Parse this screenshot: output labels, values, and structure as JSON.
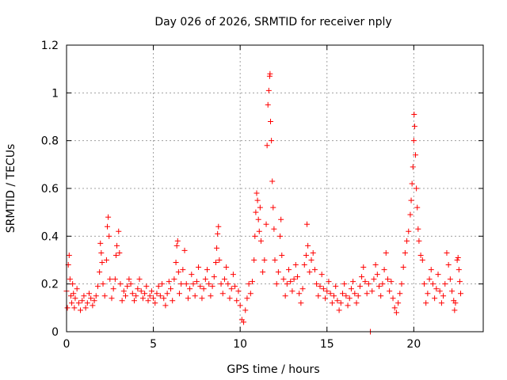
{
  "chart_data": {
    "type": "scatter",
    "title": "Day 026 of 2026, SRMTID for receiver nply",
    "xlabel": "GPS time / hours",
    "ylabel": "SRMTID / TECUs",
    "xlim": [
      0,
      24
    ],
    "ylim": [
      0,
      1.2
    ],
    "grid": true,
    "legend": "none",
    "marker": "plus",
    "series_color": "#ff0000",
    "xticks": [
      {
        "value": 0,
        "label": "0"
      },
      {
        "value": 5,
        "label": "5"
      },
      {
        "value": 10,
        "label": "10"
      },
      {
        "value": 15,
        "label": "15"
      },
      {
        "value": 20,
        "label": "20"
      }
    ],
    "yticks": [
      {
        "value": 0,
        "label": "0"
      },
      {
        "value": 0.2,
        "label": "0.2"
      },
      {
        "value": 0.4,
        "label": "0.4"
      },
      {
        "value": 0.6,
        "label": "0.6"
      },
      {
        "value": 0.8,
        "label": "0.8"
      },
      {
        "value": 1.0,
        "label": "1"
      },
      {
        "value": 1.2,
        "label": "1.2"
      }
    ],
    "series": [
      {
        "name": "SRMTID",
        "points": [
          [
            0.0,
            0.17
          ],
          [
            0.05,
            0.1
          ],
          [
            0.1,
            0.28
          ],
          [
            0.15,
            0.32
          ],
          [
            0.2,
            0.22
          ],
          [
            0.25,
            0.15
          ],
          [
            0.3,
            0.12
          ],
          [
            0.35,
            0.2
          ],
          [
            0.4,
            0.16
          ],
          [
            0.45,
            0.1
          ],
          [
            0.5,
            0.14
          ],
          [
            0.6,
            0.18
          ],
          [
            0.7,
            0.12
          ],
          [
            0.8,
            0.09
          ],
          [
            0.9,
            0.13
          ],
          [
            1.0,
            0.15
          ],
          [
            1.1,
            0.1
          ],
          [
            1.2,
            0.12
          ],
          [
            1.3,
            0.16
          ],
          [
            1.4,
            0.14
          ],
          [
            1.5,
            0.11
          ],
          [
            1.6,
            0.13
          ],
          [
            1.7,
            0.15
          ],
          [
            1.8,
            0.19
          ],
          [
            1.9,
            0.25
          ],
          [
            1.95,
            0.37
          ],
          [
            2.0,
            0.33
          ],
          [
            2.05,
            0.29
          ],
          [
            2.1,
            0.2
          ],
          [
            2.2,
            0.15
          ],
          [
            2.3,
            0.3
          ],
          [
            2.35,
            0.44
          ],
          [
            2.4,
            0.48
          ],
          [
            2.45,
            0.4
          ],
          [
            2.5,
            0.22
          ],
          [
            2.6,
            0.14
          ],
          [
            2.7,
            0.18
          ],
          [
            2.8,
            0.22
          ],
          [
            2.85,
            0.32
          ],
          [
            2.9,
            0.36
          ],
          [
            3.0,
            0.42
          ],
          [
            3.05,
            0.33
          ],
          [
            3.1,
            0.2
          ],
          [
            3.2,
            0.13
          ],
          [
            3.3,
            0.17
          ],
          [
            3.4,
            0.15
          ],
          [
            3.5,
            0.19
          ],
          [
            3.6,
            0.22
          ],
          [
            3.7,
            0.2
          ],
          [
            3.8,
            0.16
          ],
          [
            3.9,
            0.13
          ],
          [
            4.0,
            0.15
          ],
          [
            4.1,
            0.18
          ],
          [
            4.2,
            0.22
          ],
          [
            4.3,
            0.17
          ],
          [
            4.4,
            0.14
          ],
          [
            4.5,
            0.16
          ],
          [
            4.6,
            0.19
          ],
          [
            4.7,
            0.13
          ],
          [
            4.8,
            0.15
          ],
          [
            4.9,
            0.17
          ],
          [
            5.0,
            0.14
          ],
          [
            5.1,
            0.12
          ],
          [
            5.2,
            0.16
          ],
          [
            5.3,
            0.19
          ],
          [
            5.4,
            0.15
          ],
          [
            5.5,
            0.2
          ],
          [
            5.6,
            0.14
          ],
          [
            5.7,
            0.11
          ],
          [
            5.8,
            0.16
          ],
          [
            5.9,
            0.21
          ],
          [
            6.0,
            0.18
          ],
          [
            6.1,
            0.13
          ],
          [
            6.2,
            0.22
          ],
          [
            6.3,
            0.29
          ],
          [
            6.35,
            0.36
          ],
          [
            6.4,
            0.38
          ],
          [
            6.45,
            0.25
          ],
          [
            6.5,
            0.16
          ],
          [
            6.6,
            0.2
          ],
          [
            6.7,
            0.26
          ],
          [
            6.8,
            0.34
          ],
          [
            6.9,
            0.2
          ],
          [
            7.0,
            0.14
          ],
          [
            7.1,
            0.18
          ],
          [
            7.2,
            0.24
          ],
          [
            7.3,
            0.2
          ],
          [
            7.4,
            0.15
          ],
          [
            7.5,
            0.21
          ],
          [
            7.6,
            0.27
          ],
          [
            7.7,
            0.19
          ],
          [
            7.8,
            0.14
          ],
          [
            7.9,
            0.18
          ],
          [
            8.0,
            0.22
          ],
          [
            8.1,
            0.26
          ],
          [
            8.2,
            0.2
          ],
          [
            8.3,
            0.15
          ],
          [
            8.4,
            0.19
          ],
          [
            8.5,
            0.23
          ],
          [
            8.6,
            0.29
          ],
          [
            8.65,
            0.35
          ],
          [
            8.7,
            0.41
          ],
          [
            8.75,
            0.44
          ],
          [
            8.8,
            0.3
          ],
          [
            8.9,
            0.2
          ],
          [
            9.0,
            0.16
          ],
          [
            9.1,
            0.22
          ],
          [
            9.2,
            0.27
          ],
          [
            9.3,
            0.2
          ],
          [
            9.4,
            0.14
          ],
          [
            9.5,
            0.18
          ],
          [
            9.6,
            0.24
          ],
          [
            9.7,
            0.19
          ],
          [
            9.8,
            0.13
          ],
          [
            9.9,
            0.17
          ],
          [
            10.0,
            0.11
          ],
          [
            10.1,
            0.05
          ],
          [
            10.2,
            0.04
          ],
          [
            10.3,
            0.09
          ],
          [
            10.4,
            0.14
          ],
          [
            10.5,
            0.2
          ],
          [
            10.6,
            0.16
          ],
          [
            10.7,
            0.21
          ],
          [
            10.8,
            0.3
          ],
          [
            10.85,
            0.4
          ],
          [
            10.9,
            0.5
          ],
          [
            10.95,
            0.58
          ],
          [
            11.0,
            0.55
          ],
          [
            11.05,
            0.47
          ],
          [
            11.1,
            0.42
          ],
          [
            11.15,
            0.52
          ],
          [
            11.2,
            0.38
          ],
          [
            11.3,
            0.25
          ],
          [
            11.4,
            0.3
          ],
          [
            11.5,
            0.45
          ],
          [
            11.55,
            0.78
          ],
          [
            11.6,
            0.95
          ],
          [
            11.65,
            1.01
          ],
          [
            11.7,
            1.07
          ],
          [
            11.72,
            1.08
          ],
          [
            11.75,
            0.88
          ],
          [
            11.8,
            0.8
          ],
          [
            11.85,
            0.63
          ],
          [
            11.9,
            0.52
          ],
          [
            11.95,
            0.43
          ],
          [
            12.0,
            0.3
          ],
          [
            12.1,
            0.2
          ],
          [
            12.2,
            0.25
          ],
          [
            12.3,
            0.4
          ],
          [
            12.35,
            0.47
          ],
          [
            12.4,
            0.32
          ],
          [
            12.5,
            0.22
          ],
          [
            12.6,
            0.15
          ],
          [
            12.7,
            0.2
          ],
          [
            12.8,
            0.26
          ],
          [
            12.9,
            0.21
          ],
          [
            13.0,
            0.17
          ],
          [
            13.1,
            0.22
          ],
          [
            13.2,
            0.28
          ],
          [
            13.3,
            0.23
          ],
          [
            13.4,
            0.16
          ],
          [
            13.5,
            0.12
          ],
          [
            13.6,
            0.18
          ],
          [
            13.7,
            0.28
          ],
          [
            13.8,
            0.32
          ],
          [
            13.85,
            0.45
          ],
          [
            13.9,
            0.36
          ],
          [
            14.0,
            0.25
          ],
          [
            14.1,
            0.3
          ],
          [
            14.2,
            0.33
          ],
          [
            14.3,
            0.26
          ],
          [
            14.4,
            0.2
          ],
          [
            14.5,
            0.15
          ],
          [
            14.6,
            0.19
          ],
          [
            14.7,
            0.24
          ],
          [
            14.8,
            0.18
          ],
          [
            14.9,
            0.14
          ],
          [
            15.0,
            0.17
          ],
          [
            15.1,
            0.21
          ],
          [
            15.2,
            0.16
          ],
          [
            15.3,
            0.12
          ],
          [
            15.4,
            0.15
          ],
          [
            15.5,
            0.19
          ],
          [
            15.6,
            0.13
          ],
          [
            15.7,
            0.09
          ],
          [
            15.8,
            0.12
          ],
          [
            15.9,
            0.16
          ],
          [
            16.0,
            0.2
          ],
          [
            16.1,
            0.15
          ],
          [
            16.2,
            0.11
          ],
          [
            16.3,
            0.14
          ],
          [
            16.4,
            0.18
          ],
          [
            16.5,
            0.21
          ],
          [
            16.6,
            0.16
          ],
          [
            16.7,
            0.12
          ],
          [
            16.8,
            0.15
          ],
          [
            16.9,
            0.19
          ],
          [
            17.0,
            0.23
          ],
          [
            17.1,
            0.27
          ],
          [
            17.2,
            0.21
          ],
          [
            17.3,
            0.16
          ],
          [
            17.4,
            0.2
          ],
          [
            17.5,
            0.0
          ],
          [
            17.6,
            0.17
          ],
          [
            17.7,
            0.22
          ],
          [
            17.8,
            0.28
          ],
          [
            17.9,
            0.24
          ],
          [
            18.0,
            0.19
          ],
          [
            18.1,
            0.15
          ],
          [
            18.2,
            0.2
          ],
          [
            18.3,
            0.26
          ],
          [
            18.4,
            0.33
          ],
          [
            18.5,
            0.22
          ],
          [
            18.6,
            0.17
          ],
          [
            18.7,
            0.21
          ],
          [
            18.8,
            0.14
          ],
          [
            18.9,
            0.1
          ],
          [
            19.0,
            0.08
          ],
          [
            19.1,
            0.12
          ],
          [
            19.2,
            0.16
          ],
          [
            19.3,
            0.2
          ],
          [
            19.4,
            0.27
          ],
          [
            19.5,
            0.33
          ],
          [
            19.6,
            0.38
          ],
          [
            19.7,
            0.42
          ],
          [
            19.8,
            0.49
          ],
          [
            19.85,
            0.55
          ],
          [
            19.9,
            0.62
          ],
          [
            19.95,
            0.69
          ],
          [
            20.0,
            0.8
          ],
          [
            20.02,
            0.91
          ],
          [
            20.05,
            0.86
          ],
          [
            20.1,
            0.74
          ],
          [
            20.15,
            0.6
          ],
          [
            20.2,
            0.52
          ],
          [
            20.25,
            0.43
          ],
          [
            20.3,
            0.38
          ],
          [
            20.4,
            0.32
          ],
          [
            20.5,
            0.3
          ],
          [
            20.6,
            0.2
          ],
          [
            20.7,
            0.12
          ],
          [
            20.8,
            0.16
          ],
          [
            20.9,
            0.22
          ],
          [
            21.0,
            0.26
          ],
          [
            21.1,
            0.2
          ],
          [
            21.2,
            0.14
          ],
          [
            21.3,
            0.18
          ],
          [
            21.4,
            0.24
          ],
          [
            21.5,
            0.17
          ],
          [
            21.6,
            0.12
          ],
          [
            21.7,
            0.15
          ],
          [
            21.8,
            0.2
          ],
          [
            21.9,
            0.33
          ],
          [
            22.0,
            0.28
          ],
          [
            22.1,
            0.22
          ],
          [
            22.2,
            0.17
          ],
          [
            22.3,
            0.13
          ],
          [
            22.35,
            0.09
          ],
          [
            22.4,
            0.12
          ],
          [
            22.5,
            0.3
          ],
          [
            22.55,
            0.31
          ],
          [
            22.6,
            0.26
          ],
          [
            22.65,
            0.21
          ],
          [
            22.7,
            0.16
          ]
        ]
      }
    ]
  }
}
